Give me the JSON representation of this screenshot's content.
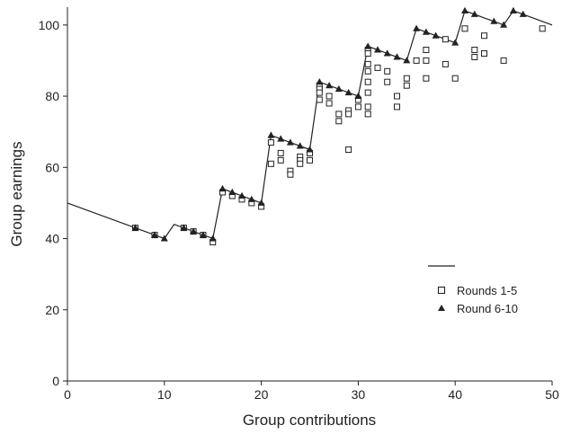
{
  "chart_data": {
    "type": "scatter",
    "title": "",
    "xlabel": "Group contributions",
    "ylabel": "Group earnings",
    "xlim": [
      0,
      50
    ],
    "ylim": [
      0,
      105
    ],
    "xticks": [
      0,
      10,
      20,
      30,
      40,
      50
    ],
    "yticks": [
      0,
      20,
      40,
      60,
      80,
      100
    ],
    "grid": false,
    "legend_position": "right",
    "colors": {
      "ink": "#222222",
      "background": "#ffffff"
    },
    "line": {
      "name": "",
      "points": [
        [
          0,
          50
        ],
        [
          7,
          43
        ],
        [
          9,
          41
        ],
        [
          10,
          40
        ],
        [
          11,
          44
        ],
        [
          12,
          43
        ],
        [
          13,
          42
        ],
        [
          14,
          41
        ],
        [
          15,
          40
        ],
        [
          16,
          54
        ],
        [
          17,
          53
        ],
        [
          18,
          52
        ],
        [
          19,
          51
        ],
        [
          20,
          50
        ],
        [
          21,
          69
        ],
        [
          22,
          68
        ],
        [
          23,
          67
        ],
        [
          24,
          66
        ],
        [
          25,
          65
        ],
        [
          26,
          84
        ],
        [
          27,
          83
        ],
        [
          28,
          82
        ],
        [
          29,
          81
        ],
        [
          30,
          80
        ],
        [
          31,
          94
        ],
        [
          32,
          93
        ],
        [
          33,
          92
        ],
        [
          34,
          91
        ],
        [
          35,
          90
        ],
        [
          36,
          99
        ],
        [
          37,
          98
        ],
        [
          38,
          97
        ],
        [
          39,
          96
        ],
        [
          40,
          95
        ],
        [
          41,
          104
        ],
        [
          42,
          103
        ],
        [
          43,
          102
        ],
        [
          44,
          101
        ],
        [
          45,
          100
        ],
        [
          46,
          104
        ],
        [
          47,
          103
        ],
        [
          50,
          100
        ]
      ]
    },
    "series": [
      {
        "name": "Rounds 1-5",
        "marker": "open-square",
        "points": [
          [
            7,
            43
          ],
          [
            9,
            41
          ],
          [
            12,
            43
          ],
          [
            13,
            42
          ],
          [
            14,
            41
          ],
          [
            15,
            39
          ],
          [
            16,
            53
          ],
          [
            17,
            52
          ],
          [
            18,
            51
          ],
          [
            19,
            50
          ],
          [
            20,
            49
          ],
          [
            21,
            67
          ],
          [
            21,
            61
          ],
          [
            22,
            64
          ],
          [
            22,
            62
          ],
          [
            23,
            59
          ],
          [
            23,
            58
          ],
          [
            24,
            63
          ],
          [
            24,
            62
          ],
          [
            24,
            61
          ],
          [
            25,
            64
          ],
          [
            25,
            62
          ],
          [
            26,
            83
          ],
          [
            26,
            82
          ],
          [
            26,
            81
          ],
          [
            26,
            79
          ],
          [
            27,
            80
          ],
          [
            27,
            78
          ],
          [
            28,
            75
          ],
          [
            28,
            73
          ],
          [
            29,
            76
          ],
          [
            29,
            75
          ],
          [
            29,
            65
          ],
          [
            30,
            79
          ],
          [
            30,
            77
          ],
          [
            31,
            93
          ],
          [
            31,
            92
          ],
          [
            31,
            89
          ],
          [
            31,
            87
          ],
          [
            31,
            84
          ],
          [
            31,
            81
          ],
          [
            31,
            77
          ],
          [
            31,
            75
          ],
          [
            32,
            88
          ],
          [
            33,
            87
          ],
          [
            33,
            84
          ],
          [
            34,
            80
          ],
          [
            34,
            77
          ],
          [
            35,
            85
          ],
          [
            35,
            83
          ],
          [
            36,
            90
          ],
          [
            37,
            93
          ],
          [
            37,
            90
          ],
          [
            37,
            85
          ],
          [
            39,
            96
          ],
          [
            39,
            89
          ],
          [
            40,
            85
          ],
          [
            41,
            99
          ],
          [
            42,
            93
          ],
          [
            42,
            91
          ],
          [
            43,
            97
          ],
          [
            43,
            92
          ],
          [
            45,
            90
          ],
          [
            49,
            99
          ]
        ]
      },
      {
        "name": "Round 6-10",
        "marker": "filled-triangle",
        "points": [
          [
            7,
            43
          ],
          [
            9,
            41
          ],
          [
            10,
            40
          ],
          [
            12,
            43
          ],
          [
            13,
            42
          ],
          [
            14,
            41
          ],
          [
            15,
            40
          ],
          [
            16,
            54
          ],
          [
            17,
            53
          ],
          [
            18,
            52
          ],
          [
            19,
            51
          ],
          [
            20,
            50
          ],
          [
            21,
            69
          ],
          [
            22,
            68
          ],
          [
            23,
            67
          ],
          [
            24,
            66
          ],
          [
            25,
            65
          ],
          [
            26,
            84
          ],
          [
            27,
            83
          ],
          [
            28,
            82
          ],
          [
            29,
            81
          ],
          [
            30,
            80
          ],
          [
            31,
            94
          ],
          [
            32,
            93
          ],
          [
            33,
            92
          ],
          [
            34,
            91
          ],
          [
            35,
            90
          ],
          [
            36,
            99
          ],
          [
            37,
            98
          ],
          [
            38,
            97
          ],
          [
            40,
            95
          ],
          [
            41,
            104
          ],
          [
            42,
            103
          ],
          [
            44,
            101
          ],
          [
            45,
            100
          ],
          [
            46,
            104
          ],
          [
            47,
            103
          ]
        ]
      }
    ]
  }
}
